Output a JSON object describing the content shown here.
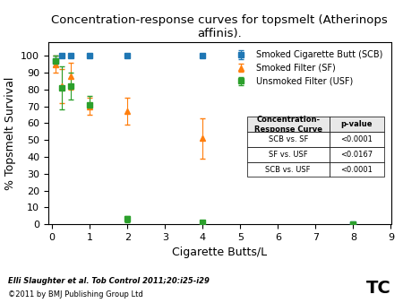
{
  "chart_data": {
    "type": "scatter",
    "title": "Concentration-response curves for topsmelt (Atherinops affinis).",
    "x_label": "Cigarette Butts/L",
    "y_label": "% Topsmelt Survival",
    "xlim": [
      -0.1,
      9
    ],
    "ylim": [
      0,
      108
    ],
    "xticks": [
      0,
      1,
      2,
      3,
      4,
      5,
      6,
      7,
      8,
      9
    ],
    "yticks": [
      0,
      10,
      20,
      30,
      40,
      50,
      60,
      70,
      80,
      90,
      100
    ],
    "legend": "upper right",
    "series": [
      {
        "name": "Smoked Cigarette Butt (SCB)",
        "marker": "square",
        "x": [
          0.1,
          0.25,
          0.5,
          1.0,
          2.0,
          4.0,
          8.0
        ],
        "values": [
          97,
          100,
          100,
          100,
          100,
          100,
          0
        ],
        "yerr_lo": [
          3,
          0,
          0,
          0,
          0,
          0,
          0
        ],
        "yerr_hi": [
          3,
          0,
          0,
          0,
          0,
          0,
          0
        ]
      },
      {
        "name": "Smoked Filter (SF)",
        "marker": "triangle",
        "x": [
          0.1,
          0.25,
          0.5,
          1.0,
          2.0,
          4.0,
          8.0
        ],
        "values": [
          95,
          82,
          88,
          70,
          67,
          51,
          0
        ],
        "yerr_lo": [
          5,
          10,
          8,
          5,
          8,
          12,
          0
        ],
        "yerr_hi": [
          5,
          10,
          8,
          5,
          8,
          12,
          0
        ]
      },
      {
        "name": "Unsmoked Filter (USF)",
        "marker": "square",
        "x": [
          0.1,
          0.25,
          0.5,
          1.0,
          2.0,
          4.0,
          8.0
        ],
        "values": [
          97,
          81,
          82,
          71,
          3,
          1,
          0
        ],
        "yerr_lo": [
          3,
          13,
          8,
          0,
          2,
          1,
          0
        ],
        "yerr_hi": [
          3,
          13,
          8,
          5,
          2,
          0,
          0
        ]
      }
    ],
    "table": {
      "header": [
        "Concentration-\nResponse Curve",
        "p-value"
      ],
      "rows": [
        [
          "SCB vs. SF",
          "<0.0001"
        ],
        [
          "SF vs. USF",
          "<0.0167"
        ],
        [
          "SCB vs. USF",
          "<0.0001"
        ]
      ]
    },
    "footnote": "Elli Slaughter et al. Tob Control 2011;20:i25-i29",
    "copyright": "©2011 by BMJ Publishing Group Ltd",
    "logo_text": "TC"
  }
}
